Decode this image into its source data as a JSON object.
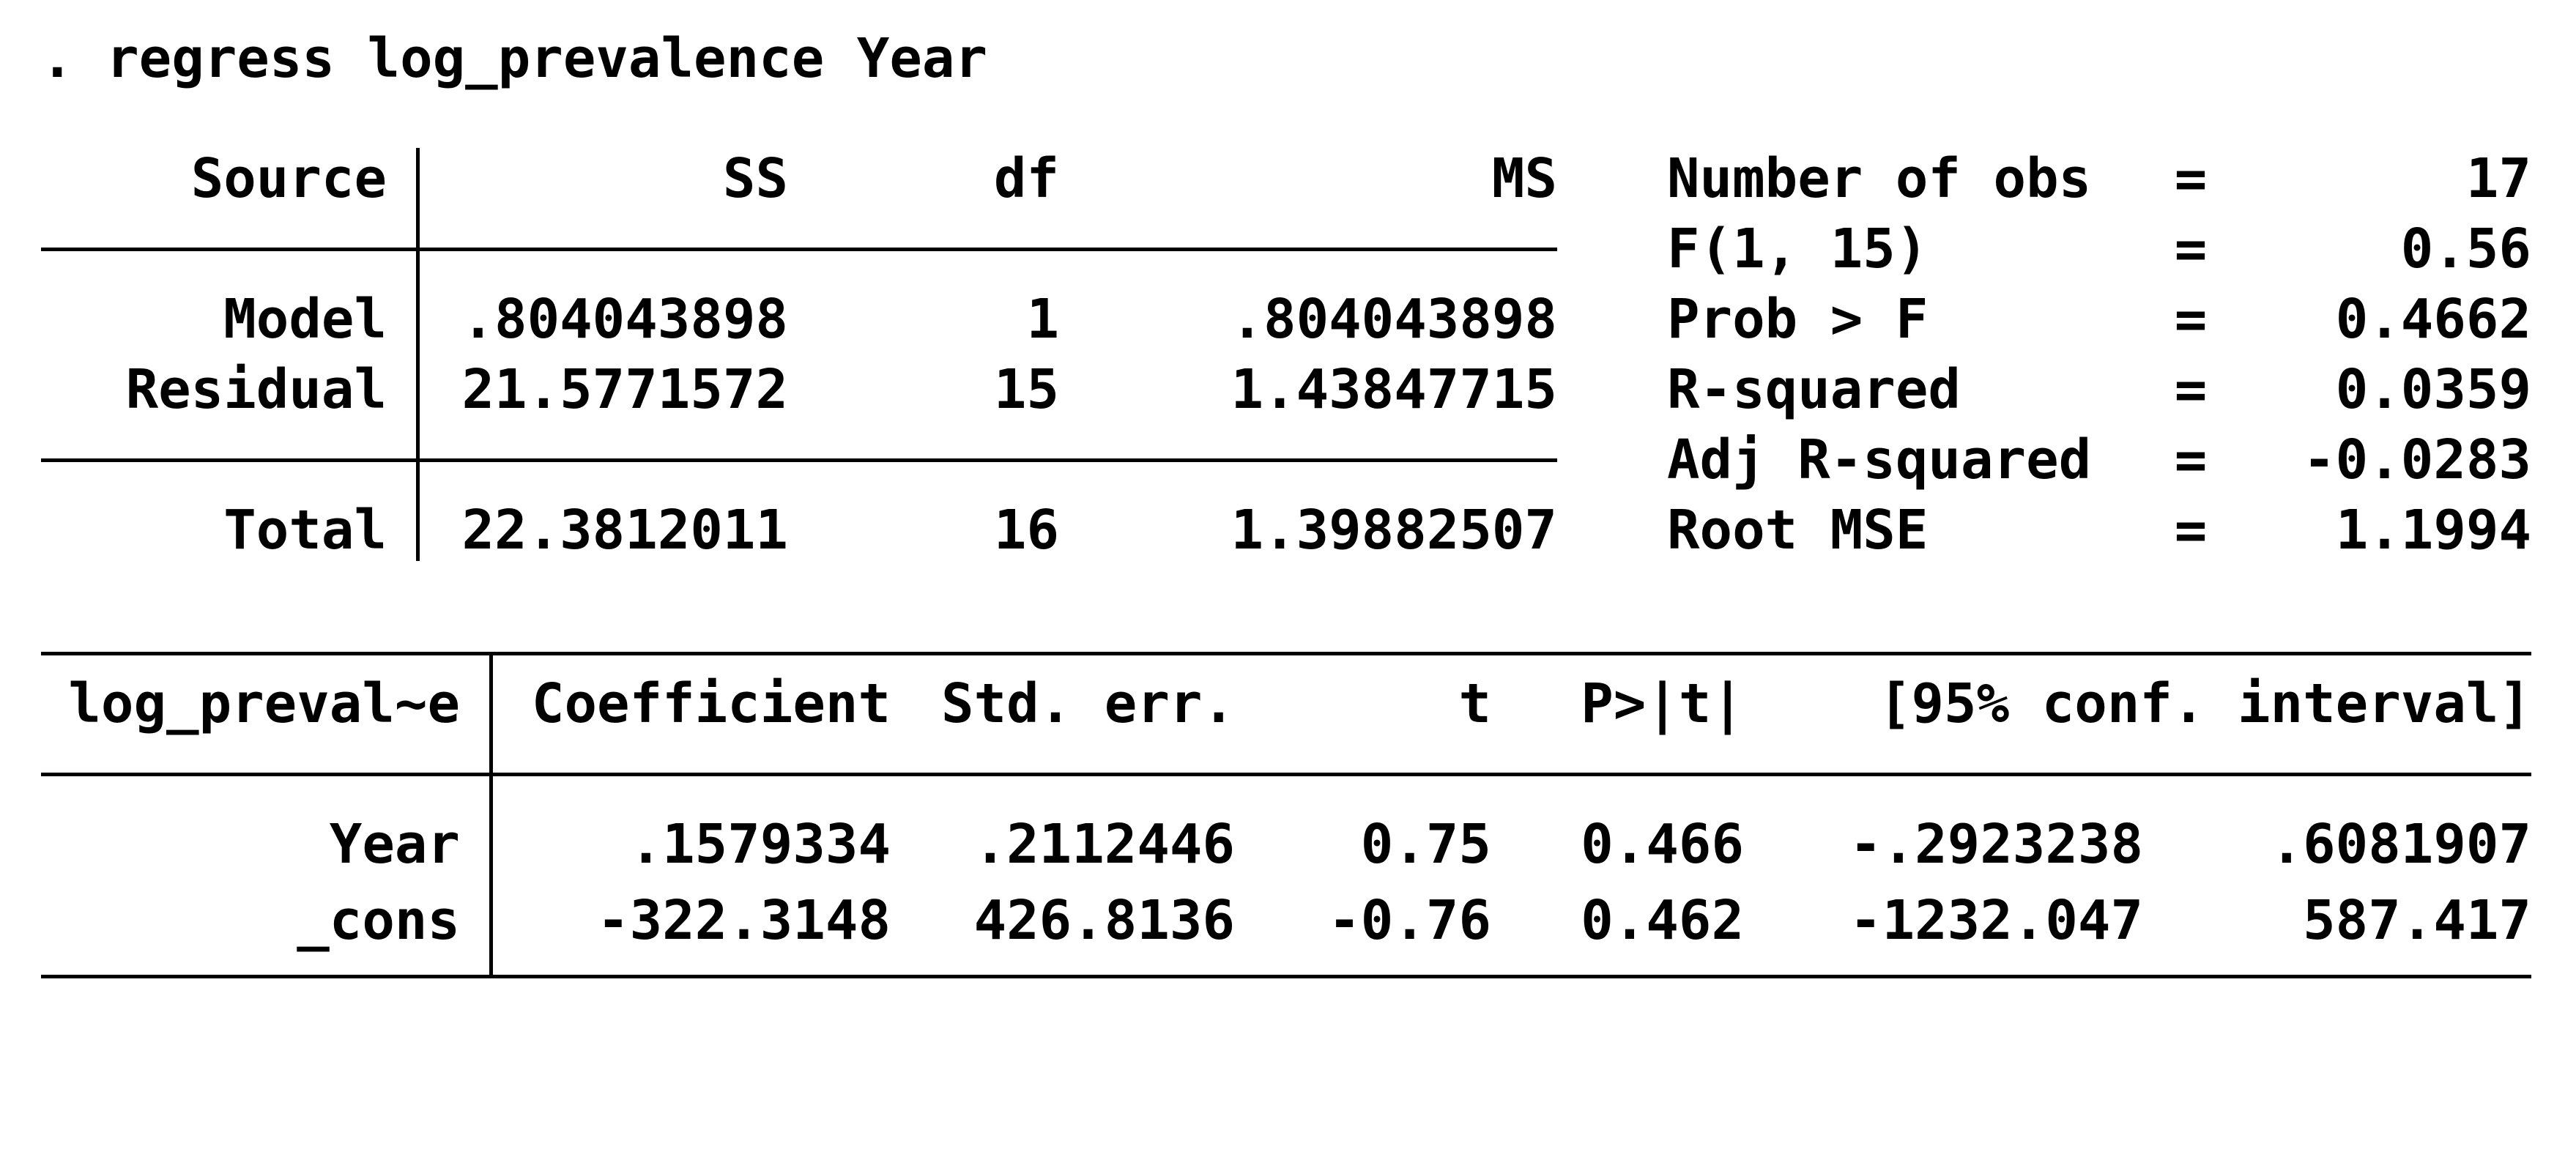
{
  "window": {
    "background": "#ffffff",
    "text_color": "#000000"
  },
  "command": ". regress log_prevalence Year",
  "anova": {
    "headers": {
      "source": "Source",
      "ss": "SS",
      "df": "df",
      "ms": "MS"
    },
    "rows": [
      {
        "source": "Model",
        "ss": ".804043898",
        "df": "1",
        "ms": ".804043898"
      },
      {
        "source": "Residual",
        "ss": "21.5771572",
        "df": "15",
        "ms": "1.43847715"
      },
      {
        "source": "Total",
        "ss": "22.3812011",
        "df": "16",
        "ms": "1.39882507"
      }
    ]
  },
  "stats": [
    {
      "label": "Number of obs",
      "eq": "=",
      "value": "17"
    },
    {
      "label": "F(1, 15)",
      "eq": "=",
      "value": "0.56"
    },
    {
      "label": "Prob > F",
      "eq": "=",
      "value": "0.4662"
    },
    {
      "label": "R-squared",
      "eq": "=",
      "value": "0.0359"
    },
    {
      "label": "Adj R-squared",
      "eq": "=",
      "value": "-0.0283"
    },
    {
      "label": "Root MSE",
      "eq": "=",
      "value": "1.1994"
    }
  ],
  "coef": {
    "depvar": "log_preval~e",
    "headers": {
      "coef": "Coefficient",
      "stderr": "Std. err.",
      "t": "t",
      "p": "P>|t|",
      "ci": "[95% conf. interval]"
    },
    "rows": [
      {
        "name": "Year",
        "coef": ".1579334",
        "stderr": ".2112446",
        "t": "0.75",
        "p": "0.466",
        "ci_low": "-.2923238",
        "ci_high": ".6081907"
      },
      {
        "name": "_cons",
        "coef": "-322.3148",
        "stderr": "426.8136",
        "t": "-0.76",
        "p": "0.462",
        "ci_low": "-1232.047",
        "ci_high": "587.417"
      }
    ]
  }
}
